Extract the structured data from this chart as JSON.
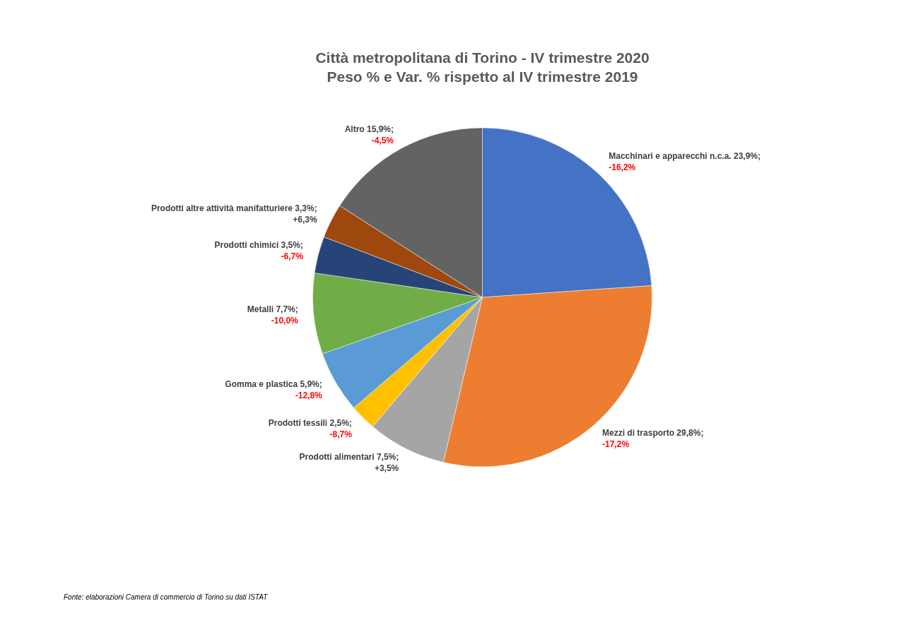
{
  "chart_data": {
    "type": "pie",
    "title": "Città metropolitana di Torino - IV trimestre 2020",
    "subtitle": "Peso % e Var. % rispetto al IV trimestre 2019",
    "categories": [
      "Macchinari e apparecchi n.c.a.",
      "Mezzi di trasporto",
      "Prodotti alimentari",
      "Prodotti tessili",
      "Gomma e plastica",
      "Metalli",
      "Prodotti chimici",
      "Prodotti altre attività manifatturiere",
      "Altro"
    ],
    "values": [
      23.9,
      29.8,
      7.5,
      2.5,
      5.9,
      7.7,
      3.5,
      3.3,
      15.9
    ],
    "colors": [
      "#4472c4",
      "#ed7d31",
      "#a5a5a5",
      "#ffc000",
      "#5b9bd5",
      "#70ad47",
      "#264478",
      "#9e480e",
      "#636363"
    ],
    "value_labels": [
      "23,9%;",
      "29,8%;",
      "7,5%;",
      "2,5%;",
      "5,9%;",
      "7,7%;",
      "3,5%;",
      "3,3%;",
      "15,9%;"
    ],
    "annotations": [
      {
        "text": "-16,2%",
        "x": "Macchinari e apparecchi n.c.a."
      },
      {
        "text": "-17,2%",
        "x": "Mezzi di trasporto"
      },
      {
        "text": "+3,5%",
        "x": "Prodotti alimentari"
      },
      {
        "text": "-8,7%",
        "x": "Prodotti tessili"
      },
      {
        "text": "-12,8%",
        "x": "Gomma e plastica"
      },
      {
        "text": "-10,0%",
        "x": "Metalli"
      },
      {
        "text": "-6,7%",
        "x": "Prodotti chimici"
      },
      {
        "text": "+6,3%",
        "x": "Prodotti altre attività manifatturiere"
      },
      {
        "text": "-4,5%",
        "x": "Altro"
      },
      "Fonte: elaborazioni Camera di commercio di Torino su dati ISTAT"
    ],
    "legend": false
  }
}
